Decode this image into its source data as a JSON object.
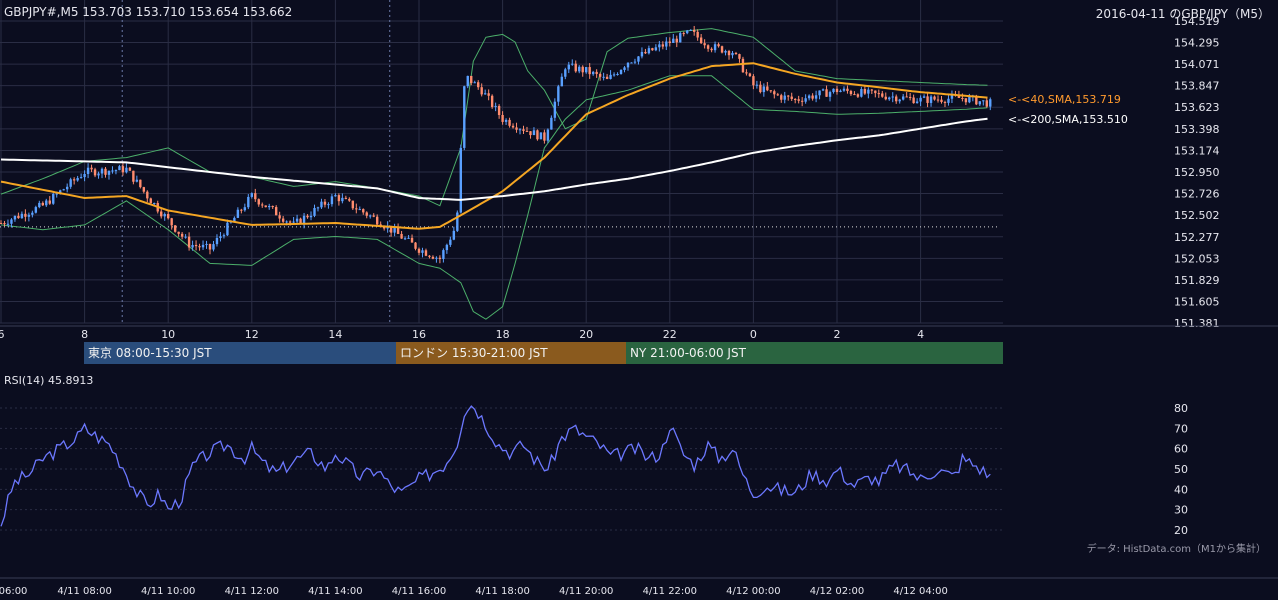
{
  "header": {
    "title": "GBPJPY#,M5 153.703 153.710 153.654 153.662",
    "date_label": "2016-04-11 のGBP/JPY（M5）"
  },
  "sessions": {
    "tokyo": "東京 08:00-15:30 JST",
    "london": "ロンドン 15:30-21:00 JST",
    "ny": "NY 21:00-06:00 JST"
  },
  "ma_tags": {
    "sma40": "<-<40,SMA,153.719",
    "sma200": "<-<200,SMA,153.510"
  },
  "rsi": {
    "title": "RSI(14) 45.8913"
  },
  "credit": "データ: HistData.com（M1から集計）",
  "colors": {
    "background": "#0b0d1f",
    "bull_candle": "#5aa0ff",
    "bear_candle": "#ff8c6e",
    "sma40": "#f5a623",
    "sma200": "#ffffff",
    "bollinger": "#4caf6a",
    "rsi_line": "#6c78ff",
    "grid": "#2a2d44"
  },
  "chart_data": [
    {
      "type": "candlestick",
      "title": "GBPJPY#,M5",
      "y_ticks": [
        "154.519",
        "154.295",
        "154.071",
        "153.847",
        "153.623",
        "153.398",
        "153.174",
        "152.950",
        "152.726",
        "152.502",
        "152.277",
        "152.053",
        "151.829",
        "151.605",
        "151.381"
      ],
      "ylim": [
        151.381,
        154.519
      ],
      "x_ticks": [
        "6",
        "8",
        "10",
        "12",
        "14",
        "16",
        "18",
        "20",
        "22",
        "0",
        "2",
        "4"
      ],
      "last": {
        "open": 153.703,
        "high": 153.71,
        "low": 153.654,
        "close": 153.662
      },
      "dotted_level": 152.38,
      "price_path": {
        "hours": [
          6,
          7,
          8,
          9,
          9.5,
          10,
          10.5,
          11,
          12,
          13,
          14,
          15,
          16,
          16.5,
          16.9,
          17.1,
          17.5,
          18,
          18.5,
          19,
          19.5,
          20,
          20.5,
          21,
          21.5,
          22,
          22.5,
          23,
          23.5,
          24,
          24.5,
          25,
          26,
          27,
          28,
          29,
          29.7
        ],
        "prices": [
          152.42,
          152.6,
          152.95,
          152.98,
          152.7,
          152.45,
          152.2,
          152.15,
          152.7,
          152.4,
          152.7,
          152.45,
          152.15,
          152.05,
          152.4,
          153.95,
          153.8,
          153.5,
          153.4,
          153.3,
          154.05,
          154.0,
          153.9,
          154.1,
          154.2,
          154.3,
          154.4,
          154.25,
          154.2,
          153.85,
          153.75,
          153.7,
          153.8,
          153.75,
          153.7,
          153.72,
          153.66
        ]
      },
      "series": [
        {
          "name": "40,SMA",
          "last": 153.719,
          "hours": [
            6,
            8,
            9,
            10,
            12,
            14,
            16,
            16.5,
            17,
            18,
            19,
            20,
            21,
            22,
            23,
            24,
            25,
            26,
            28,
            29.7
          ],
          "values": [
            152.85,
            152.68,
            152.7,
            152.55,
            152.4,
            152.42,
            152.36,
            152.38,
            152.5,
            152.75,
            153.1,
            153.55,
            153.75,
            153.92,
            154.05,
            154.08,
            153.97,
            153.88,
            153.78,
            153.72
          ]
        },
        {
          "name": "200,SMA",
          "last": 153.51,
          "hours": [
            6,
            9,
            12,
            15,
            16,
            17,
            18,
            19,
            20,
            21,
            22,
            23,
            24,
            25,
            26,
            27,
            28,
            29,
            29.7
          ],
          "values": [
            153.08,
            153.05,
            152.9,
            152.78,
            152.68,
            152.66,
            152.7,
            152.75,
            152.82,
            152.88,
            152.96,
            153.05,
            153.15,
            153.22,
            153.28,
            153.33,
            153.4,
            153.47,
            153.51
          ]
        },
        {
          "name": "Bollinger upper",
          "hours": [
            6,
            7,
            8,
            9,
            10,
            11,
            12,
            13,
            14,
            15,
            16,
            16.5,
            17,
            17.3,
            17.6,
            18,
            18.3,
            18.6,
            19,
            19.5,
            20,
            20.5,
            21,
            22,
            23,
            24,
            25,
            26,
            27,
            28,
            29,
            29.7
          ],
          "values": [
            152.72,
            152.88,
            153.06,
            153.1,
            153.2,
            152.95,
            152.9,
            152.8,
            152.85,
            152.78,
            152.7,
            152.6,
            153.2,
            154.1,
            154.35,
            154.38,
            154.3,
            154.0,
            153.8,
            153.4,
            153.5,
            154.2,
            154.34,
            154.4,
            154.44,
            154.35,
            154.0,
            153.92,
            153.9,
            153.88,
            153.86,
            153.85
          ]
        },
        {
          "name": "Bollinger lower",
          "hours": [
            6,
            7,
            8,
            9,
            10,
            11,
            12,
            13,
            14,
            15,
            16,
            16.5,
            17,
            17.3,
            17.6,
            18,
            18.3,
            18.6,
            19,
            19.5,
            20,
            20.5,
            21,
            22,
            23,
            24,
            25,
            26,
            27,
            28,
            29,
            29.7
          ],
          "values": [
            152.4,
            152.35,
            152.4,
            152.65,
            152.35,
            152.0,
            151.98,
            152.25,
            152.28,
            152.25,
            152.0,
            151.95,
            151.8,
            151.5,
            151.42,
            151.55,
            152.0,
            152.5,
            153.2,
            153.5,
            153.7,
            153.75,
            153.8,
            153.95,
            153.95,
            153.6,
            153.58,
            153.55,
            153.56,
            153.58,
            153.6,
            153.62
          ]
        }
      ]
    },
    {
      "type": "line",
      "title": "RSI(14) 45.8913",
      "y_ticks": [
        "80",
        "70",
        "60",
        "50",
        "40",
        "30",
        "20"
      ],
      "ylim": [
        15,
        85
      ],
      "x_ticks": [
        "06:00",
        "4/11 08:00",
        "4/11 10:00",
        "4/11 12:00",
        "4/11 14:00",
        "4/11 16:00",
        "4/11 18:00",
        "4/11 20:00",
        "4/11 22:00",
        "4/12 00:00",
        "4/12 02:00",
        "4/12 04:00"
      ],
      "series": [
        {
          "name": "RSI(14)",
          "last": 45.8913,
          "hours": [
            6,
            6.3,
            6.7,
            7,
            7.4,
            7.8,
            8,
            8.3,
            8.6,
            8.9,
            9.2,
            9.5,
            9.8,
            10,
            10.3,
            10.6,
            11,
            11.4,
            11.8,
            12,
            12.3,
            12.6,
            13,
            13.4,
            13.8,
            14,
            14.3,
            14.6,
            15,
            15.3,
            15.6,
            16,
            16.3,
            16.6,
            16.9,
            17.1,
            17.3,
            17.6,
            17.9,
            18.2,
            18.5,
            18.8,
            19.1,
            19.4,
            19.7,
            20,
            20.3,
            20.6,
            20.9,
            21.2,
            21.5,
            21.8,
            22,
            22.3,
            22.6,
            22.9,
            23.2,
            23.5,
            23.8,
            24,
            24.3,
            24.6,
            25,
            25.4,
            25.8,
            26,
            26.4,
            26.8,
            27,
            27.4,
            27.8,
            28,
            28.4,
            28.8,
            29,
            29.3,
            29.7
          ],
          "values": [
            23,
            43,
            48,
            55,
            60,
            65,
            70,
            66,
            62,
            52,
            40,
            32,
            38,
            30,
            35,
            52,
            58,
            62,
            55,
            60,
            52,
            48,
            54,
            58,
            50,
            58,
            52,
            46,
            50,
            42,
            38,
            45,
            48,
            52,
            62,
            80,
            82,
            72,
            62,
            58,
            62,
            54,
            50,
            65,
            70,
            66,
            62,
            56,
            58,
            60,
            55,
            58,
            72,
            58,
            52,
            62,
            55,
            60,
            45,
            38,
            42,
            40,
            38,
            48,
            44,
            50,
            42,
            46,
            44,
            52,
            48,
            45,
            50,
            46,
            55,
            52,
            46
          ]
        }
      ]
    }
  ]
}
